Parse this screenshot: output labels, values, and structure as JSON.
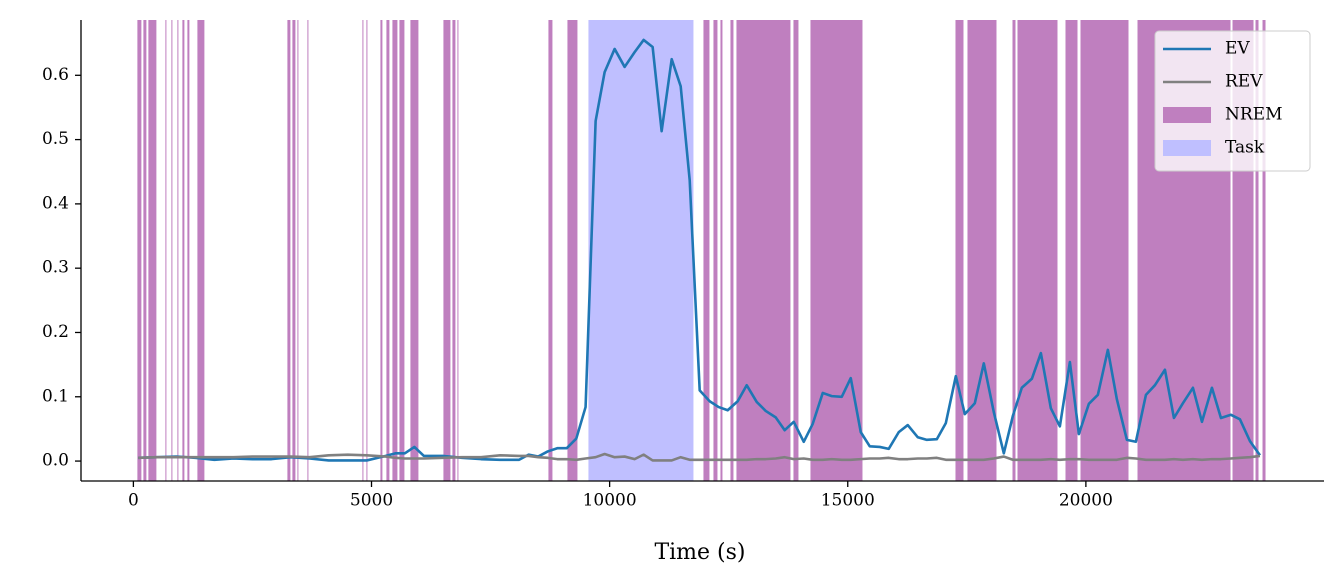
{
  "chart_data": {
    "type": "line",
    "xlabel": "Time (s)",
    "xlim": [
      -1100,
      25000
    ],
    "ylim": [
      -0.031,
      0.686
    ],
    "xticks": [
      0,
      5000,
      10000,
      15000,
      20000
    ],
    "yticks": [
      {
        "value": 0,
        "label": "0.0"
      },
      0.1,
      0.2,
      0.3,
      0.4,
      0.5,
      0.6
    ],
    "grid": false,
    "legend": "upper right",
    "x": [
      100,
      500,
      900,
      1300,
      1700,
      2100,
      2500,
      2900,
      3300,
      3700,
      4100,
      4500,
      4900,
      5300,
      5500,
      5700,
      5900,
      6100,
      6500,
      6900,
      7300,
      7700,
      8100,
      8300,
      8500,
      8700,
      8900,
      9100,
      9300,
      9495,
      9706,
      9895,
      10105,
      10315,
      10525,
      10714,
      10903,
      11092,
      11303,
      11492,
      11681,
      11891,
      12101,
      12290,
      12479,
      12689,
      12878,
      13088,
      13277,
      13487,
      13676,
      13866,
      14076,
      14265,
      14475,
      14664,
      14874,
      15063,
      15273,
      15462,
      15672,
      15861,
      16071,
      16260,
      16471,
      16660,
      16870,
      17059,
      17269,
      17458,
      17668,
      17857,
      18067,
      18277,
      18466,
      18655,
      18866,
      19055,
      19265,
      19454,
      19664,
      19853,
      20063,
      20252,
      20462,
      20651,
      20861,
      21050,
      21261,
      21450,
      21660,
      21849,
      22038,
      22248,
      22437,
      22647,
      22836,
      23046,
      23235,
      23445,
      23655
    ],
    "series": [
      {
        "name": "EV",
        "color": "#1f77b4",
        "values": [
          0.005,
          0.006,
          0.007,
          0.005,
          0.002,
          0.004,
          0.003,
          0.003,
          0.006,
          0.004,
          0.001,
          0.001,
          0.001,
          0.008,
          0.012,
          0.012,
          0.022,
          0.008,
          0.008,
          0.005,
          0.003,
          0.002,
          0.002,
          0.01,
          0.007,
          0.015,
          0.02,
          0.02,
          0.035,
          0.084,
          0.529,
          0.605,
          0.641,
          0.613,
          0.636,
          0.655,
          0.644,
          0.513,
          0.625,
          0.583,
          0.437,
          0.11,
          0.093,
          0.084,
          0.079,
          0.093,
          0.118,
          0.092,
          0.078,
          0.068,
          0.048,
          0.061,
          0.03,
          0.058,
          0.106,
          0.101,
          0.1,
          0.129,
          0.045,
          0.023,
          0.022,
          0.019,
          0.045,
          0.056,
          0.037,
          0.033,
          0.034,
          0.059,
          0.132,
          0.073,
          0.09,
          0.152,
          0.076,
          0.012,
          0.07,
          0.114,
          0.128,
          0.168,
          0.082,
          0.054,
          0.154,
          0.042,
          0.089,
          0.103,
          0.173,
          0.096,
          0.033,
          0.03,
          0.103,
          0.118,
          0.142,
          0.067,
          0.09,
          0.114,
          0.061,
          0.114,
          0.067,
          0.072,
          0.065,
          0.031,
          0.009
        ]
      },
      {
        "name": "REV",
        "color": "#808080",
        "values": [
          0.005,
          0.006,
          0.006,
          0.006,
          0.006,
          0.006,
          0.007,
          0.007,
          0.007,
          0.006,
          0.009,
          0.01,
          0.009,
          0.007,
          0.005,
          0.004,
          0.004,
          0.004,
          0.005,
          0.006,
          0.006,
          0.009,
          0.008,
          0.008,
          0.006,
          0.005,
          0.003,
          0.003,
          0.002,
          0.004,
          0.006,
          0.011,
          0.006,
          0.007,
          0.003,
          0.01,
          0.001,
          0.001,
          0.001,
          0.006,
          0.002,
          0.002,
          0.002,
          0.002,
          0.002,
          0.002,
          0.002,
          0.003,
          0.003,
          0.004,
          0.006,
          0.003,
          0.004,
          0.002,
          0.002,
          0.003,
          0.002,
          0.002,
          0.003,
          0.004,
          0.004,
          0.005,
          0.003,
          0.003,
          0.004,
          0.004,
          0.005,
          0.002,
          0.002,
          0.002,
          0.002,
          0.002,
          0.004,
          0.007,
          0.002,
          0.002,
          0.002,
          0.002,
          0.003,
          0.002,
          0.003,
          0.003,
          0.002,
          0.002,
          0.002,
          0.002,
          0.005,
          0.004,
          0.002,
          0.002,
          0.002,
          0.003,
          0.002,
          0.003,
          0.002,
          0.003,
          0.003,
          0.004,
          0.005,
          0.006,
          0.008
        ]
      }
    ],
    "spans": [
      {
        "name": "NREM",
        "color": "#bf7fbf",
        "ranges": [
          [
            84,
            168
          ],
          [
            210,
            273
          ],
          [
            315,
            483
          ],
          [
            672,
            693
          ],
          [
            798,
            819
          ],
          [
            924,
            945
          ],
          [
            1029,
            1071
          ],
          [
            1134,
            1176
          ],
          [
            1344,
            1491
          ],
          [
            3234,
            3297
          ],
          [
            3339,
            3402
          ],
          [
            3444,
            3465
          ],
          [
            3654,
            3675
          ],
          [
            4809,
            4830
          ],
          [
            4893,
            4914
          ],
          [
            5187,
            5229
          ],
          [
            5313,
            5376
          ],
          [
            5439,
            5544
          ],
          [
            5586,
            5691
          ],
          [
            5817,
            5985
          ],
          [
            6510,
            6657
          ],
          [
            6699,
            6762
          ],
          [
            6804,
            6825
          ],
          [
            8715,
            8799
          ],
          [
            9114,
            9324
          ],
          [
            11970,
            12096
          ],
          [
            12180,
            12264
          ],
          [
            12327,
            12369
          ],
          [
            12537,
            12600
          ],
          [
            12663,
            13797
          ],
          [
            13860,
            13965
          ],
          [
            14217,
            15309
          ],
          [
            17262,
            17430
          ],
          [
            17514,
            18123
          ],
          [
            18459,
            18522
          ],
          [
            18564,
            19404
          ],
          [
            19572,
            19824
          ],
          [
            19887,
            20895
          ],
          [
            21084,
            23037
          ],
          [
            23079,
            23520
          ],
          [
            23562,
            23625
          ],
          [
            23709,
            23772
          ]
        ]
      },
      {
        "name": "Task",
        "color": "#bfbfff",
        "ranges": [
          [
            9555,
            11760
          ]
        ]
      }
    ]
  }
}
